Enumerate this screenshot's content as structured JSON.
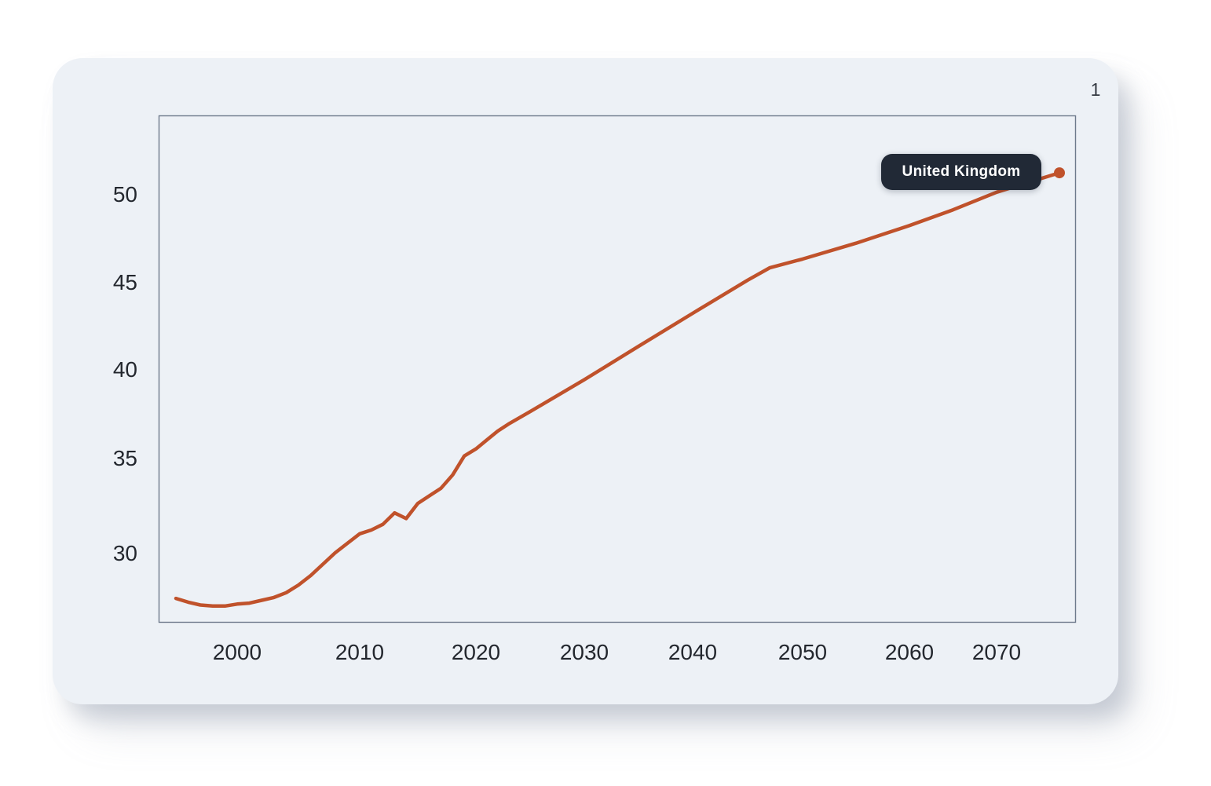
{
  "page_number": "1",
  "card": {
    "background": "#edf1f6"
  },
  "tooltip": {
    "text": "United Kingdom",
    "background": "#212936",
    "text_color": "#ffffff"
  },
  "chart_data": {
    "type": "line",
    "title": "",
    "xlabel": "",
    "ylabel": "",
    "grid": false,
    "legend": "inline-badge-at-line-end",
    "x_range": [
      1995,
      2076
    ],
    "y_axis_ticks_shown": [
      30,
      35,
      40,
      45,
      50
    ],
    "x_tick_labels": [
      "2000",
      "2010",
      "2020",
      "2030",
      "2040",
      "2050",
      "2060",
      "2070"
    ],
    "y_tick_labels": [
      "30",
      "35",
      "40",
      "45",
      "50"
    ],
    "line_color": "#c0522b",
    "axis_border_color": "#6e7a8c",
    "series": [
      {
        "name": "United Kingdom",
        "end_dot": true,
        "points": [
          [
            1995,
            27.6
          ],
          [
            1996,
            27.4
          ],
          [
            1997,
            27.25
          ],
          [
            1998,
            27.2
          ],
          [
            1999,
            27.2
          ],
          [
            2000,
            27.3
          ],
          [
            2001,
            27.35
          ],
          [
            2002,
            27.5
          ],
          [
            2003,
            27.65
          ],
          [
            2004,
            27.9
          ],
          [
            2005,
            28.3
          ],
          [
            2006,
            28.8
          ],
          [
            2007,
            29.4
          ],
          [
            2008,
            30.0
          ],
          [
            2009,
            30.5
          ],
          [
            2010,
            31.0
          ],
          [
            2011,
            31.2
          ],
          [
            2012,
            31.5
          ],
          [
            2013,
            32.1
          ],
          [
            2014,
            31.8
          ],
          [
            2015,
            32.6
          ],
          [
            2016,
            33.0
          ],
          [
            2017,
            33.4
          ],
          [
            2018,
            34.1
          ],
          [
            2019,
            35.1
          ],
          [
            2020,
            35.5
          ],
          [
            2021,
            36.0
          ],
          [
            2022,
            36.5
          ],
          [
            2023,
            36.9
          ],
          [
            2025,
            37.6
          ],
          [
            2030,
            39.4
          ],
          [
            2035,
            41.3
          ],
          [
            2040,
            43.2
          ],
          [
            2045,
            45.1
          ],
          [
            2047,
            45.8
          ],
          [
            2050,
            46.3
          ],
          [
            2055,
            47.2
          ],
          [
            2060,
            48.2
          ],
          [
            2065,
            49.1
          ],
          [
            2070,
            50.1
          ],
          [
            2076,
            51.2
          ]
        ]
      }
    ]
  }
}
